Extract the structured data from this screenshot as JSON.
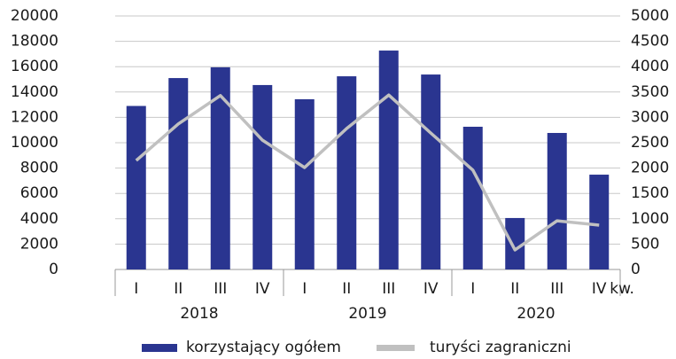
{
  "chart_data": {
    "type": "bar",
    "categories": [
      "I",
      "II",
      "III",
      "IV",
      "I",
      "II",
      "III",
      "IV",
      "I",
      "II",
      "III",
      "IV"
    ],
    "category_groups": [
      "2018",
      "2019",
      "2020"
    ],
    "x_unit_label": "kw.",
    "series": [
      {
        "name": "korzystający ogółem",
        "color": "#2a3590",
        "type": "bar",
        "axis": "y",
        "values": [
          12900,
          15100,
          15950,
          14550,
          13430,
          15240,
          17270,
          15380,
          11260,
          4060,
          10770,
          7480
        ]
      },
      {
        "name": "turyści zagraniczni",
        "color": "#c0c0c0",
        "type": "line",
        "axis": "y2",
        "values": [
          2150,
          2870,
          3430,
          2550,
          2010,
          2780,
          3440,
          2690,
          1960,
          385,
          960,
          875
        ]
      }
    ],
    "ylim": [
      0,
      20000
    ],
    "yticks": [
      0,
      2000,
      4000,
      6000,
      8000,
      10000,
      12000,
      14000,
      16000,
      18000,
      20000
    ],
    "y2lim": [
      0,
      5000
    ],
    "y2ticks": [
      0,
      500,
      1000,
      1500,
      2000,
      2500,
      3000,
      3500,
      4000,
      4500,
      5000
    ],
    "grid": true,
    "legend": "bottom"
  }
}
